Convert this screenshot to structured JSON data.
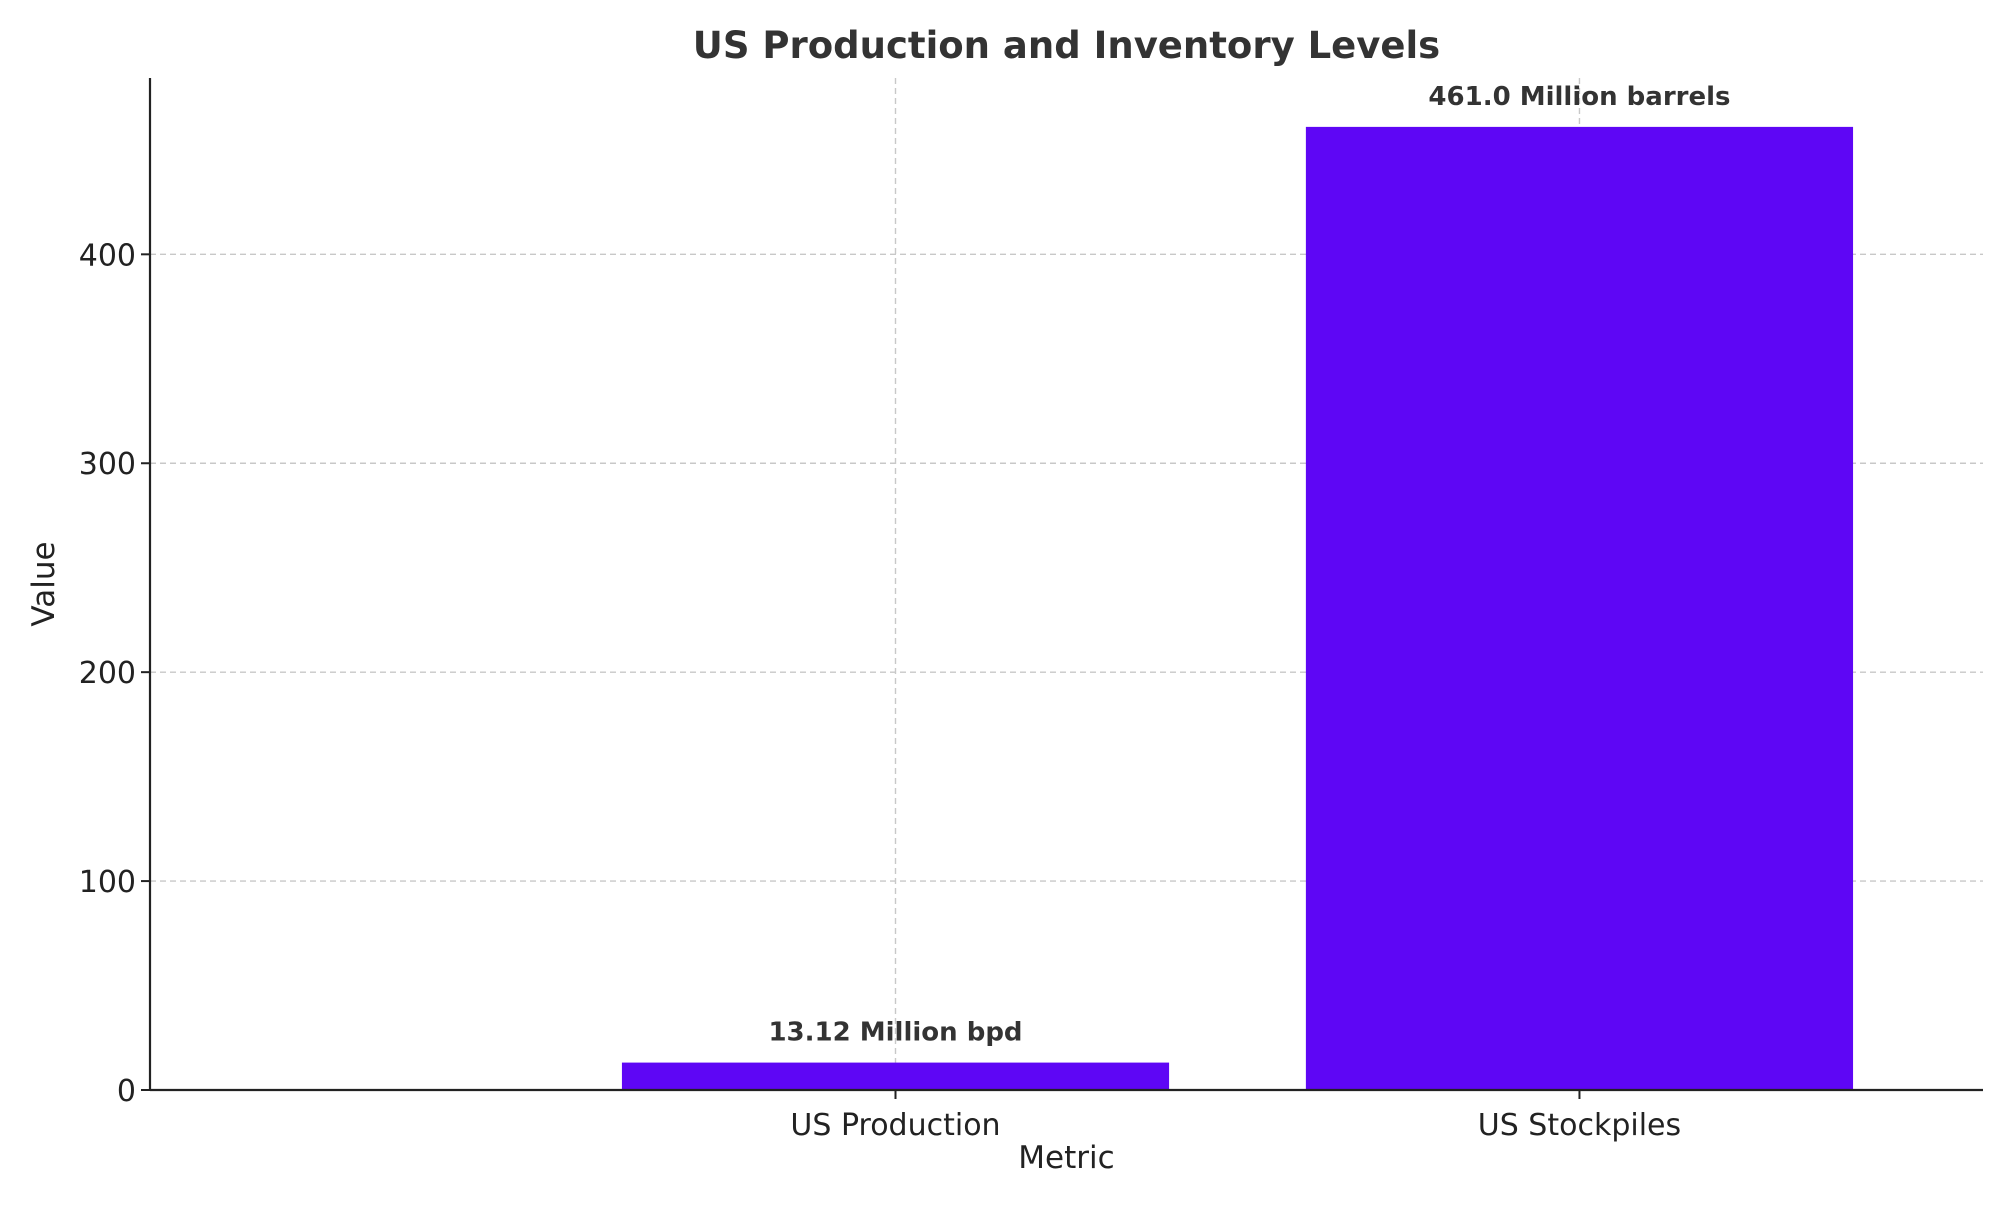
{
  "chart_data": {
    "type": "bar",
    "title": "US Production and Inventory Levels",
    "xlabel": "Metric",
    "ylabel": "Value",
    "categories": [
      "US Production",
      "US Stockpiles"
    ],
    "values": [
      13.12,
      461.0
    ],
    "data_labels": [
      "13.12 Million bpd",
      "461.0 Million barrels"
    ],
    "ylim": [
      0,
      484.4
    ],
    "yticks": [
      0,
      100,
      200,
      300,
      400
    ],
    "grid": true,
    "bar_color": "#5e06f5"
  }
}
